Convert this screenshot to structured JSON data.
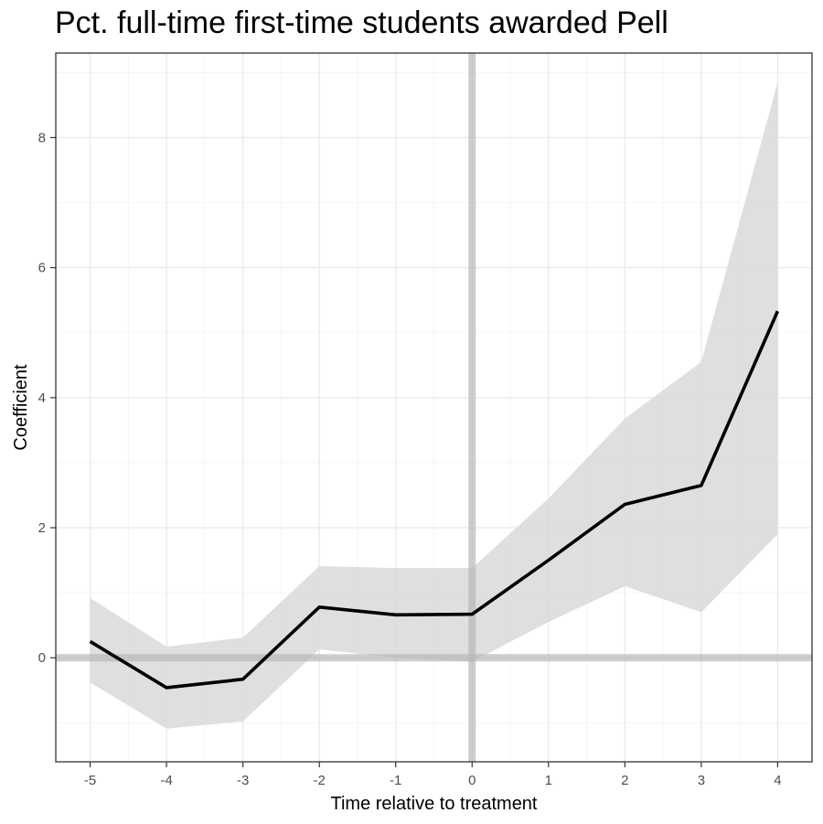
{
  "chart_data": {
    "type": "line",
    "title": "Pct. full-time first-time students awarded Pell",
    "xlabel": "Time relative to treatment",
    "ylabel": "Coefficient",
    "x": [
      -5,
      -4,
      -3,
      -2,
      -1,
      0,
      1,
      2,
      3,
      4
    ],
    "series": [
      {
        "values": [
          0.25,
          -0.46,
          -0.33,
          0.78,
          0.66,
          0.67,
          1.5,
          2.36,
          2.65,
          5.33
        ],
        "ci_lower": [
          -0.38,
          -1.09,
          -0.98,
          0.13,
          0.0,
          -0.06,
          0.55,
          1.1,
          0.7,
          1.9
        ],
        "ci_upper": [
          0.92,
          0.17,
          0.31,
          1.41,
          1.38,
          1.38,
          2.45,
          3.68,
          4.55,
          8.85
        ]
      }
    ],
    "xlim": [
      -5.45,
      4.45
    ],
    "ylim": [
      -1.6,
      9.3
    ],
    "x_ticks": [
      -5,
      -4,
      -3,
      -2,
      -1,
      0,
      1,
      2,
      3,
      4
    ],
    "y_ticks": [
      0,
      2,
      4,
      6,
      8
    ],
    "reference_lines": {
      "x": 0,
      "y": 0
    },
    "grid": true,
    "legend": "none",
    "colors": {
      "line": "#000000",
      "band": "#d9d9d9",
      "reference": "#b3b3b3",
      "grid": "#ebebeb",
      "border": "#333333"
    }
  }
}
